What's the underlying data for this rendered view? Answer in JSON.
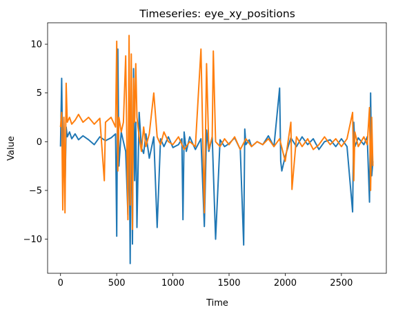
{
  "chart_data": {
    "type": "line",
    "title": "Timeseries: eye_xy_positions",
    "xlabel": "Time",
    "ylabel": "Value",
    "xlim": [
      -115,
      2900
    ],
    "ylim": [
      -13.5,
      12.2
    ],
    "xticks": [
      0,
      500,
      1000,
      1500,
      2000,
      2500
    ],
    "yticks": [
      -10,
      -5,
      0,
      5,
      10
    ],
    "grid": false,
    "legend": "none",
    "series": [
      {
        "color": "#1f77b4",
        "x": [
          0,
          10,
          20,
          30,
          40,
          50,
          60,
          80,
          100,
          130,
          160,
          200,
          250,
          300,
          350,
          400,
          450,
          490,
          500,
          510,
          520,
          540,
          560,
          580,
          600,
          610,
          620,
          630,
          640,
          650,
          660,
          670,
          680,
          700,
          720,
          740,
          760,
          790,
          830,
          860,
          890,
          920,
          960,
          1000,
          1050,
          1080,
          1090,
          1100,
          1120,
          1150,
          1200,
          1250,
          1280,
          1300,
          1320,
          1350,
          1380,
          1420,
          1460,
          1500,
          1550,
          1600,
          1630,
          1640,
          1650,
          1680,
          1700,
          1750,
          1800,
          1850,
          1900,
          1950,
          1960,
          1970,
          2000,
          2050,
          2100,
          2150,
          2200,
          2250,
          2300,
          2350,
          2400,
          2450,
          2500,
          2550,
          2600,
          2610,
          2620,
          2650,
          2700,
          2730,
          2750,
          2760,
          2770,
          2780
        ],
        "y": [
          -0.5,
          6.5,
          -2.5,
          2.0,
          -5.0,
          1.5,
          0.5,
          1.0,
          0.3,
          0.8,
          0.2,
          0.6,
          0.2,
          -0.3,
          0.5,
          0.1,
          0.4,
          0.8,
          -9.7,
          9.5,
          -2.5,
          1.0,
          0.0,
          -1.0,
          -7.5,
          2.0,
          -12.5,
          5.0,
          -10.5,
          7.5,
          -4.0,
          2.0,
          -8.8,
          3.0,
          -0.6,
          -1.2,
          0.8,
          -1.7,
          0.5,
          -8.8,
          0.3,
          -0.5,
          0.5,
          -0.6,
          -0.3,
          0.3,
          -8.0,
          1.0,
          -1.0,
          0.5,
          -0.8,
          0.3,
          -8.7,
          1.2,
          -1.0,
          0.5,
          -10.0,
          0.2,
          -0.5,
          -0.2,
          0.4,
          -0.8,
          -10.6,
          1.3,
          -0.3,
          0.2,
          -0.5,
          0.0,
          -0.3,
          0.6,
          -0.5,
          5.5,
          -2.0,
          -3.0,
          -1.5,
          0.4,
          -0.5,
          0.5,
          -0.3,
          0.3,
          -0.8,
          0.0,
          0.2,
          -0.5,
          0.3,
          -0.5,
          -7.2,
          2.0,
          -0.5,
          0.4,
          -0.3,
          0.5,
          -6.2,
          5.0,
          -3.5,
          -2.0
        ]
      },
      {
        "color": "#ff7f0e",
        "x": [
          0,
          10,
          20,
          30,
          40,
          50,
          60,
          80,
          100,
          130,
          160,
          200,
          250,
          300,
          350,
          390,
          400,
          450,
          490,
          500,
          510,
          520,
          540,
          560,
          580,
          600,
          610,
          620,
          630,
          640,
          650,
          660,
          670,
          680,
          700,
          720,
          740,
          760,
          790,
          830,
          860,
          890,
          920,
          960,
          1000,
          1050,
          1100,
          1150,
          1200,
          1250,
          1280,
          1300,
          1320,
          1350,
          1360,
          1380,
          1420,
          1460,
          1500,
          1550,
          1600,
          1650,
          1700,
          1750,
          1800,
          1850,
          1900,
          1950,
          2000,
          2050,
          2060,
          2100,
          2150,
          2200,
          2250,
          2300,
          2350,
          2400,
          2450,
          2500,
          2550,
          2600,
          2610,
          2620,
          2650,
          2700,
          2730,
          2750,
          2760,
          2770,
          2780
        ],
        "y": [
          1.5,
          3.0,
          -7.0,
          2.5,
          -7.3,
          6.0,
          2.0,
          2.5,
          1.8,
          2.2,
          2.8,
          2.0,
          2.5,
          1.8,
          2.4,
          -4.0,
          2.0,
          2.5,
          1.5,
          10.3,
          -3.0,
          2.5,
          1.0,
          2.0,
          8.8,
          -8.0,
          10.9,
          -6.5,
          9.0,
          -9.0,
          6.5,
          2.0,
          8.0,
          2.5,
          0.5,
          -1.0,
          1.5,
          -0.5,
          0.8,
          5.0,
          0.5,
          -0.3,
          1.0,
          0.0,
          -0.3,
          0.5,
          -0.8,
          0.0,
          -0.5,
          9.5,
          -7.3,
          8.0,
          -0.8,
          0.5,
          9.3,
          0.0,
          -0.5,
          0.3,
          -0.3,
          0.5,
          -0.8,
          0.3,
          -0.5,
          0.0,
          -0.3,
          0.3,
          -0.5,
          0.3,
          -2.0,
          2.0,
          -4.9,
          0.5,
          -0.5,
          0.3,
          -0.8,
          -0.3,
          0.5,
          -0.3,
          0.3,
          -0.5,
          0.3,
          3.0,
          -4.0,
          1.0,
          -0.5,
          0.5,
          -0.3,
          3.5,
          -5.0,
          2.5,
          -2.5
        ]
      }
    ]
  }
}
